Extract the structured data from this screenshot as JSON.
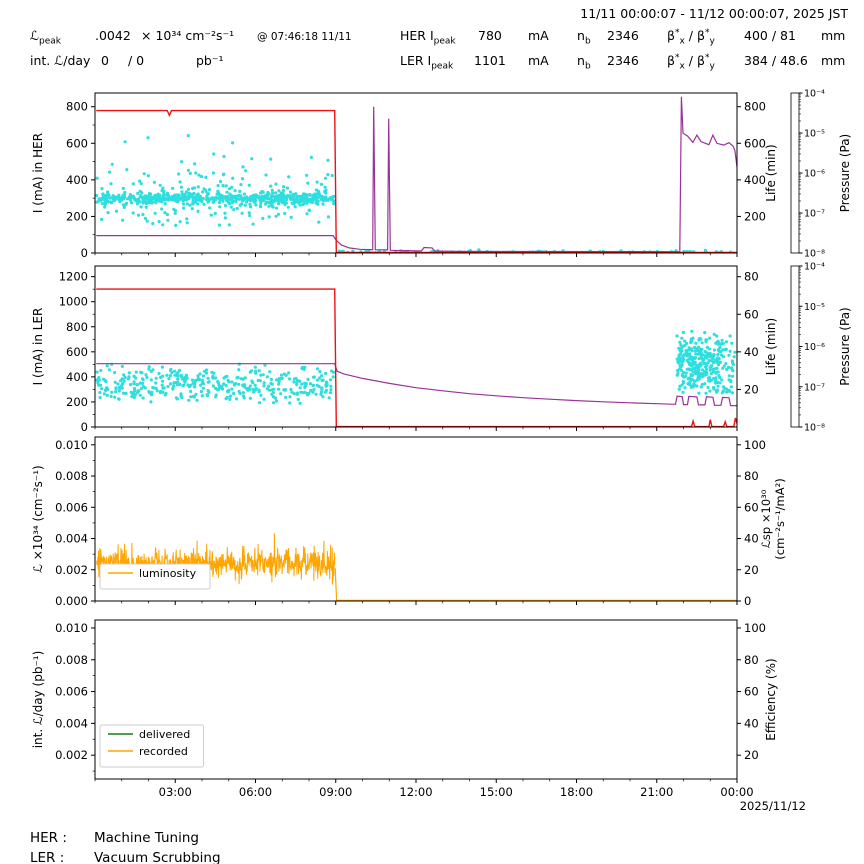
{
  "header": {
    "daterange": "11/11 00:00:07 - 11/12 00:00:07, 2025 JST",
    "lpeak_sym": "ℒ",
    "lpeak_sub": "peak",
    "lpeak_value": ".0042",
    "lpeak_unit": "× 10³⁴ cm⁻²s⁻¹",
    "lpeak_at": "@ 07:46:18 11/11",
    "intl_label": "int. ℒ/day",
    "intl_v1": "0",
    "intl_v2": "/ 0",
    "intl_unit": "pb⁻¹",
    "beta": {
      "sym": "β",
      "star": "*",
      "x": "x",
      "y": "y",
      "sep": " / "
    },
    "her": {
      "label": "HER I",
      "sub": "peak",
      "value": "780",
      "unit": "mA",
      "nb_sym": "n",
      "nb_sub": "b",
      "nb_value": "2346",
      "beta_value": "400 / 81",
      "beta_unit": "mm"
    },
    "ler": {
      "label": "LER I",
      "sub": "peak",
      "value": "1101",
      "unit": "mA",
      "nb_sym": "n",
      "nb_sub": "b",
      "nb_value": "2346",
      "beta_value": "384 / 48.6",
      "beta_unit": "mm"
    }
  },
  "xaxis_date": "2025/11/12",
  "footer": {
    "her_label": "HER :",
    "her_status": "Machine Tuning",
    "ler_label": "LER :",
    "ler_status": "Vacuum Scrubbing"
  },
  "chart_x": {
    "lim": [
      0,
      24
    ],
    "ticks": [
      3,
      6,
      9,
      12,
      15,
      18,
      21,
      24
    ],
    "labels": [
      "03:00",
      "06:00",
      "09:00",
      "12:00",
      "15:00",
      "18:00",
      "21:00",
      "00:00"
    ],
    "minor_step": 1
  },
  "chart_data": [
    {
      "type": "line",
      "name": "her-current",
      "ylabel": "I (mA) in HER",
      "ylim": [
        0,
        875
      ],
      "yticks": [
        0,
        200,
        400,
        600,
        800
      ],
      "ytick_labels": [
        "0",
        "200",
        "400",
        "600",
        "800"
      ],
      "yminor": [
        100,
        300,
        500,
        700
      ],
      "right_label": "Life (min)",
      "right_lim": [
        0,
        875
      ],
      "right_ticks": [
        200,
        400,
        600,
        800
      ],
      "right_tick_labels": [
        "200",
        "400",
        "600",
        "800"
      ],
      "pressure": {
        "label": "Pressure (Pa)",
        "tick_labels": [
          "10⁻⁴",
          "10⁻⁵",
          "10⁻⁶",
          "10⁻⁷",
          "10⁻⁸"
        ]
      },
      "series": [
        {
          "name": "her-life-scatter",
          "type": "scatter",
          "color": "#2fdede",
          "size": 1.6,
          "clusters": [
            {
              "seed": 101,
              "n": 560,
              "tmin": 0.05,
              "tmax": 8.93,
              "mean": 298,
              "sd": 16,
              "min": 230,
              "max": 370
            },
            {
              "seed": 102,
              "n": 230,
              "tmin": 0.05,
              "tmax": 8.93,
              "mean": 315,
              "sd": 115,
              "min": 140,
              "max": 780
            },
            {
              "seed": 103,
              "n": 120,
              "tmin": 9.0,
              "tmax": 23.9,
              "mean": 5,
              "sd": 4,
              "min": 0,
              "max": 22
            }
          ]
        },
        {
          "name": "her-pressure-line",
          "type": "line",
          "color": "#993399",
          "width": 1.2,
          "points": [
            [
              0.05,
              95
            ],
            [
              8.9,
              95
            ],
            [
              9.0,
              72
            ],
            [
              9.2,
              45
            ],
            [
              9.5,
              28
            ],
            [
              9.9,
              20
            ],
            [
              10.38,
              18
            ],
            [
              10.42,
              800
            ],
            [
              10.48,
              18
            ],
            [
              10.94,
              17
            ],
            [
              10.98,
              735
            ],
            [
              11.04,
              15
            ],
            [
              11.6,
              13
            ],
            [
              12.2,
              11
            ],
            [
              12.3,
              30
            ],
            [
              12.6,
              28
            ],
            [
              12.7,
              11
            ],
            [
              13.5,
              9
            ],
            [
              16,
              8
            ],
            [
              21.86,
              7
            ],
            [
              21.92,
              855
            ],
            [
              21.98,
              655
            ],
            [
              22.15,
              640
            ],
            [
              22.35,
              605
            ],
            [
              22.5,
              645
            ],
            [
              22.65,
              610
            ],
            [
              22.95,
              592
            ],
            [
              23.1,
              645
            ],
            [
              23.25,
              600
            ],
            [
              23.5,
              590
            ],
            [
              23.7,
              603
            ],
            [
              23.85,
              585
            ],
            [
              23.92,
              560
            ],
            [
              24,
              470
            ]
          ]
        },
        {
          "name": "her-current-line",
          "type": "line",
          "color": "#ee1111",
          "width": 1.4,
          "points": [
            [
              0.05,
              779
            ],
            [
              2.7,
              779
            ],
            [
              2.78,
              753
            ],
            [
              2.86,
              779
            ],
            [
              8.96,
              779
            ],
            [
              9.02,
              3
            ],
            [
              24,
              3
            ]
          ]
        }
      ]
    },
    {
      "type": "line",
      "name": "ler-current",
      "ylabel": "I (mA) in LER",
      "ylim": [
        0,
        1285
      ],
      "yticks": [
        0,
        200,
        400,
        600,
        800,
        1000,
        1200
      ],
      "ytick_labels": [
        "0",
        "200",
        "400",
        "600",
        "800",
        "1000",
        "1200"
      ],
      "yminor": [
        100,
        300,
        500,
        700,
        900,
        1100
      ],
      "right_label": "Life (min)",
      "right_lim": [
        0,
        85.7
      ],
      "right_ticks": [
        20,
        40,
        60,
        80
      ],
      "right_tick_labels": [
        "20",
        "40",
        "60",
        "80"
      ],
      "pressure": {
        "label": "Pressure (Pa)",
        "tick_labels": [
          "10⁻⁴",
          "10⁻⁵",
          "10⁻⁶",
          "10⁻⁷",
          "10⁻⁸"
        ]
      },
      "series": [
        {
          "name": "ler-life-scatter",
          "type": "scatter",
          "color": "#2fdede",
          "size": 1.6,
          "clusters": [
            {
              "seed": 201,
              "n": 400,
              "tmin": 0.05,
              "tmax": 8.93,
              "mean": 335,
              "sd": 70,
              "min": 180,
              "max": 560
            },
            {
              "seed": 202,
              "n": 310,
              "tmin": 21.75,
              "tmax": 23.4,
              "mean": 490,
              "sd": 125,
              "min": 265,
              "max": 780
            },
            {
              "seed": 203,
              "n": 45,
              "tmin": 23.4,
              "tmax": 23.95,
              "mean": 500,
              "sd": 145,
              "min": 265,
              "max": 770
            }
          ]
        },
        {
          "name": "ler-life-line",
          "type": "line",
          "color": "#993399",
          "width": 1.2,
          "points": [
            [
              0.05,
              505
            ],
            [
              8.96,
              505
            ],
            [
              9.05,
              445
            ],
            [
              9.3,
              424
            ],
            [
              10,
              388
            ],
            [
              11,
              348
            ],
            [
              12,
              314
            ],
            [
              13,
              289
            ],
            [
              14,
              266
            ],
            [
              15,
              249
            ],
            [
              16,
              234
            ],
            [
              17,
              222
            ],
            [
              18,
              211
            ],
            [
              19,
              201
            ],
            [
              20,
              193
            ],
            [
              21,
              186
            ],
            [
              21.7,
              181
            ],
            [
              21.76,
              246
            ],
            [
              21.95,
              242
            ],
            [
              22.0,
              179
            ],
            [
              22.15,
              179
            ],
            [
              22.2,
              244
            ],
            [
              22.5,
              240
            ],
            [
              22.56,
              176
            ],
            [
              22.8,
              176
            ],
            [
              22.86,
              241
            ],
            [
              23.1,
              237
            ],
            [
              23.16,
              173
            ],
            [
              23.4,
              173
            ],
            [
              23.46,
              236
            ],
            [
              23.7,
              233
            ],
            [
              23.76,
              171
            ],
            [
              24,
              171
            ]
          ]
        },
        {
          "name": "ler-current-line",
          "type": "line",
          "color": "#ee1111",
          "width": 1.4,
          "points": [
            [
              0.05,
              1101
            ],
            [
              8.96,
              1101
            ],
            [
              9.02,
              3
            ],
            [
              22.3,
              3
            ],
            [
              22.36,
              48
            ],
            [
              22.42,
              3
            ],
            [
              22.95,
              3
            ],
            [
              23.0,
              58
            ],
            [
              23.06,
              3
            ],
            [
              23.5,
              3
            ],
            [
              23.56,
              42
            ],
            [
              23.62,
              3
            ],
            [
              23.88,
              3
            ],
            [
              23.94,
              72
            ],
            [
              24,
              28
            ]
          ]
        }
      ]
    },
    {
      "type": "line",
      "name": "luminosity",
      "ylabel": "ℒ ×10³⁴ (cm⁻²s⁻¹)",
      "ylim": [
        0,
        0.0105
      ],
      "yticks": [
        0,
        0.002,
        0.004,
        0.006,
        0.008,
        0.01
      ],
      "ytick_labels": [
        "0.000",
        "0.002",
        "0.004",
        "0.006",
        "0.008",
        "0.010"
      ],
      "yminor": [
        0.001,
        0.003,
        0.005,
        0.007,
        0.009
      ],
      "right_label": [
        "ℒsp ×10³⁰",
        "(cm⁻²s⁻¹/mA²)"
      ],
      "right_lim": [
        0,
        105
      ],
      "right_ticks": [
        0,
        20,
        40,
        60,
        80,
        100
      ],
      "right_tick_labels": [
        "0",
        "20",
        "40",
        "60",
        "80",
        "100"
      ],
      "legend": {
        "items": [
          {
            "color": "#ffa500",
            "label": "luminosity"
          }
        ]
      },
      "series": [
        {
          "name": "luminosity-noisy",
          "type": "noisy_line",
          "color": "#ffa500",
          "width": 1.0,
          "seed": 301,
          "t0": 0.06,
          "t1": 8.97,
          "step": 0.012,
          "sd": 0.00048,
          "clip": [
            0.0007,
            0.00455
          ],
          "base": [
            [
              0,
              0.00245
            ],
            [
              9,
              0.00245
            ]
          ]
        },
        {
          "name": "luminosity-zero",
          "type": "line",
          "color": "#ffa500",
          "width": 1.2,
          "points": [
            [
              8.98,
              0.0021
            ],
            [
              9.03,
              4e-05
            ],
            [
              24,
              4e-05
            ]
          ]
        }
      ]
    },
    {
      "type": "line",
      "name": "integrated-luminosity",
      "ylabel": "int. ℒ/day (pb⁻¹)",
      "ylim": [
        0.0005,
        0.0105
      ],
      "yticks": [
        0.002,
        0.004,
        0.006,
        0.008,
        0.01
      ],
      "ytick_labels": [
        "0.002",
        "0.004",
        "0.006",
        "0.008",
        "0.010"
      ],
      "yminor": [
        0.001,
        0.003,
        0.005,
        0.007,
        0.009
      ],
      "right_label": "Efficiency (%)",
      "right_lim": [
        5,
        105
      ],
      "right_ticks": [
        20,
        40,
        60,
        80,
        100
      ],
      "right_tick_labels": [
        "20",
        "40",
        "60",
        "80",
        "100"
      ],
      "legend": {
        "items": [
          {
            "color": "#1a7a1a",
            "label": "delivered"
          },
          {
            "color": "#ffa500",
            "label": "recorded"
          }
        ]
      },
      "show_x_labels": true,
      "series": [
        {
          "name": "delivered-line",
          "type": "line",
          "color": "#1a7a1a",
          "width": 1.3,
          "points": [
            [
              0,
              0
            ],
            [
              24,
              0
            ]
          ]
        },
        {
          "name": "recorded-line",
          "type": "line",
          "color": "#ffa500",
          "width": 1.3,
          "points": [
            [
              0,
              0
            ],
            [
              24,
              0
            ]
          ]
        }
      ]
    }
  ]
}
